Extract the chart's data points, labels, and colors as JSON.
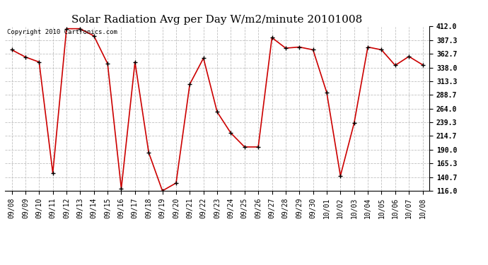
{
  "title": "Solar Radiation Avg per Day W/m2/minute 20101008",
  "copyright_text": "Copyright 2010 Cartronics.com",
  "dates": [
    "09/08",
    "09/09",
    "09/10",
    "09/11",
    "09/12",
    "09/13",
    "09/14",
    "09/15",
    "09/16",
    "09/17",
    "09/18",
    "09/19",
    "09/20",
    "09/21",
    "09/22",
    "09/23",
    "09/24",
    "09/25",
    "09/26",
    "09/27",
    "09/28",
    "09/29",
    "09/30",
    "10/01",
    "10/02",
    "10/03",
    "10/04",
    "10/05",
    "10/06",
    "10/07",
    "10/08"
  ],
  "values": [
    370,
    357,
    348,
    148,
    408,
    408,
    395,
    345,
    120,
    348,
    185,
    116,
    130,
    308,
    355,
    258,
    220,
    195,
    195,
    392,
    373,
    375,
    370,
    293,
    143,
    238,
    375,
    370,
    342,
    358,
    343
  ],
  "ylim": [
    116.0,
    412.0
  ],
  "yticks": [
    116.0,
    140.7,
    165.3,
    190.0,
    214.7,
    239.3,
    264.0,
    288.7,
    313.3,
    338.0,
    362.7,
    387.3,
    412.0
  ],
  "line_color": "#cc0000",
  "marker_color": "#000000",
  "bg_color": "#ffffff",
  "plot_bg_color": "#ffffff",
  "grid_color": "#c0c0c0",
  "title_fontsize": 11,
  "tick_fontsize": 7,
  "copyright_fontsize": 6.5
}
